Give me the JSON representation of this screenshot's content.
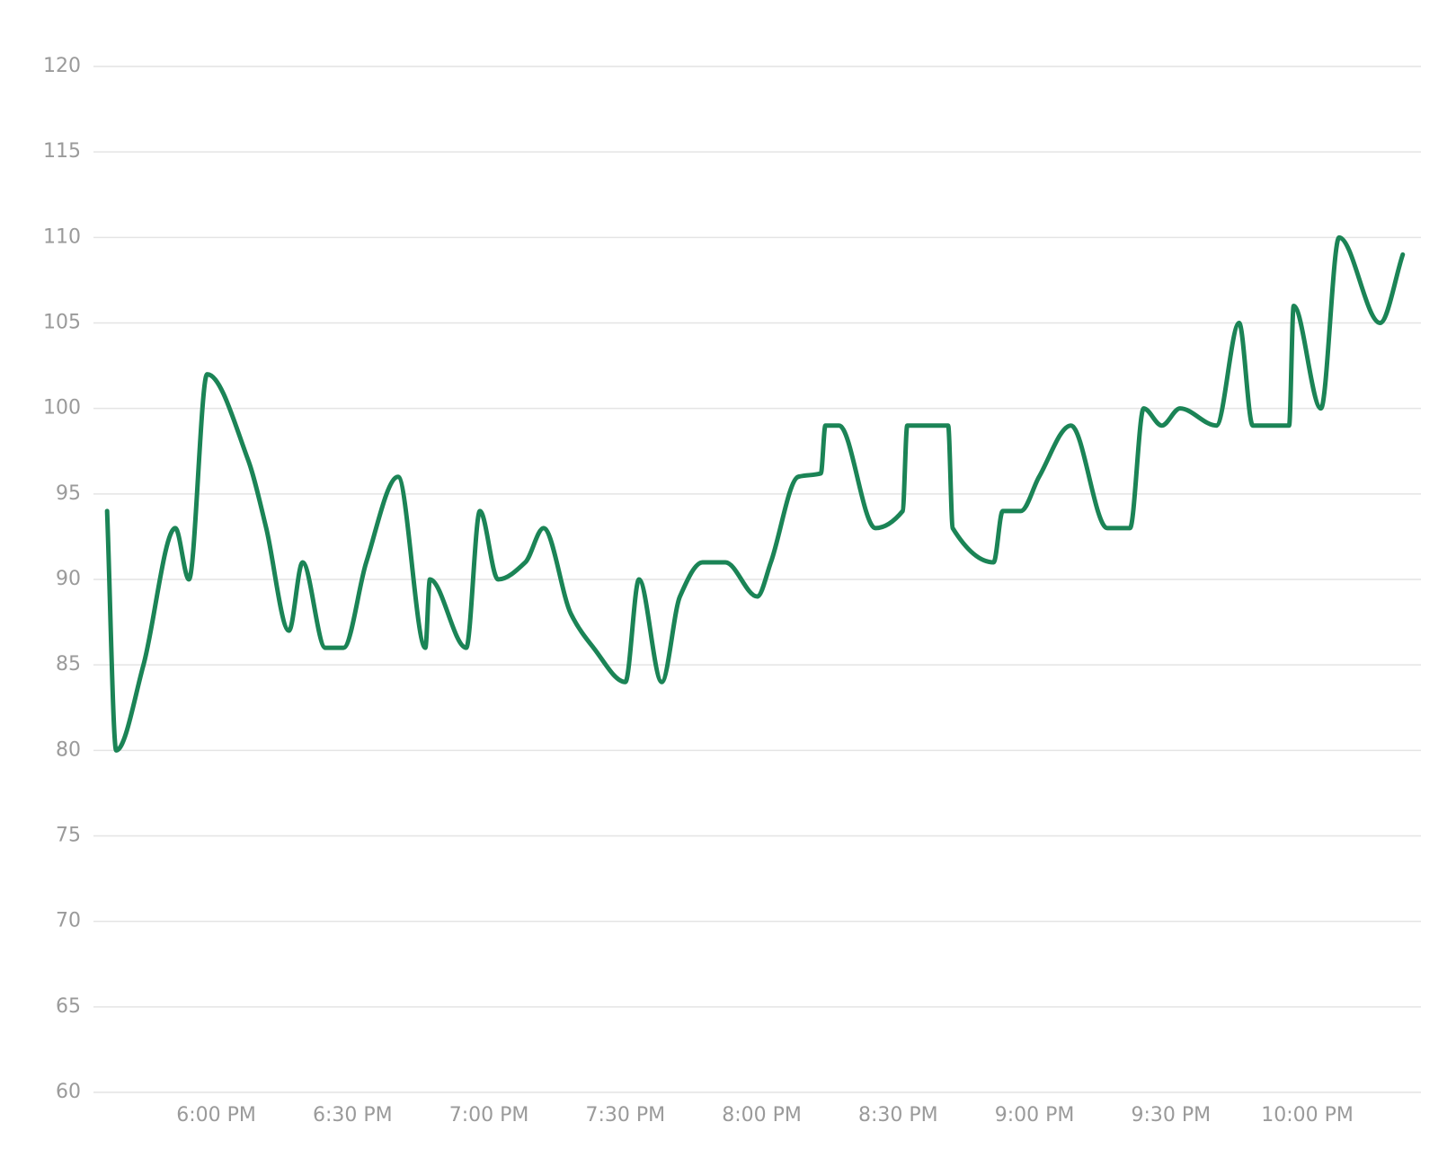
{
  "chart_data": {
    "type": "line",
    "x": [
      "5:36 PM",
      "5:38 PM",
      "5:44 PM",
      "5:51 PM",
      "5:54 PM",
      "5:58 PM",
      "6:07 PM",
      "6:11 PM",
      "6:16 PM",
      "6:19 PM",
      "6:24 PM",
      "6:28 PM",
      "6:33 PM",
      "6:40 PM",
      "6:46 PM",
      "6:47 PM",
      "6:55 PM",
      "6:58 PM",
      "7:02 PM",
      "7:08 PM",
      "7:12 PM",
      "7:18 PM",
      "7:23 PM",
      "7:30 PM",
      "7:33 PM",
      "7:38 PM",
      "7:42 PM",
      "7:47 PM",
      "7:52 PM",
      "7:59 PM",
      "8:02 PM",
      "8:08 PM",
      "8:13 PM",
      "8:14 PM",
      "8:17 PM",
      "8:25 PM",
      "8:31 PM",
      "8:32 PM",
      "8:41 PM",
      "8:42 PM",
      "8:51 PM",
      "8:53 PM",
      "8:57 PM",
      "9:01 PM",
      "9:08 PM",
      "9:16 PM",
      "9:21 PM",
      "9:24 PM",
      "9:28 PM",
      "9:32 PM",
      "9:40 PM",
      "9:45 PM",
      "9:48 PM",
      "9:56 PM",
      "9:57 PM",
      "10:03 PM",
      "10:07 PM",
      "10:16 PM",
      "10:21 PM"
    ],
    "values": [
      94,
      80,
      85,
      93,
      90,
      102,
      97,
      93,
      87,
      91,
      86,
      86,
      91,
      96,
      86,
      90,
      86,
      94,
      90,
      91,
      93,
      88,
      86,
      84,
      90,
      84,
      89,
      91,
      91,
      89,
      91,
      96,
      96.2,
      99,
      99,
      93,
      94,
      99,
      99,
      93,
      91,
      94,
      94,
      96,
      99,
      93,
      93,
      100,
      99,
      100,
      99,
      105,
      99,
      99,
      106,
      100,
      110,
      105,
      109
    ],
    "color": "#1b8456",
    "xlim": [
      "5:33 PM",
      "10:25 PM"
    ],
    "xticks": [
      "6:00 PM",
      "6:30 PM",
      "7:00 PM",
      "7:30 PM",
      "8:00 PM",
      "8:30 PM",
      "9:00 PM",
      "9:30 PM",
      "10:00 PM"
    ],
    "ylim": [
      60,
      120
    ],
    "yticks": [
      60,
      65,
      70,
      75,
      80,
      85,
      90,
      95,
      100,
      105,
      110,
      115,
      120
    ],
    "grid": true
  }
}
